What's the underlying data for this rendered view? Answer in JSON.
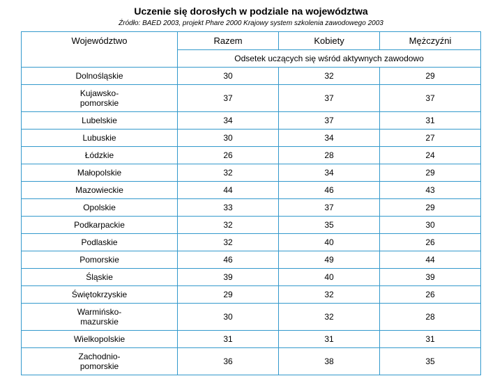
{
  "title": "Uczenie się dorosłych w podziale na województwa",
  "subtitle": "Źródło: BAED 2003, projekt Phare 2000 Krajowy system szkolenia zawodowego 2003",
  "table": {
    "columns": [
      "Województwo",
      "Razem",
      "Kobiety",
      "Mężczyźni"
    ],
    "spanning_header": "Odsetek uczących się wśród aktywnych zawodowo",
    "rows": [
      [
        "Dolnośląskie",
        "30",
        "32",
        "29"
      ],
      [
        "Kujawsko-pomorskie",
        "37",
        "37",
        "37"
      ],
      [
        "Lubelskie",
        "34",
        "37",
        "31"
      ],
      [
        "Lubuskie",
        "30",
        "34",
        "27"
      ],
      [
        "Łódzkie",
        "26",
        "28",
        "24"
      ],
      [
        "Małopolskie",
        "32",
        "34",
        "29"
      ],
      [
        "Mazowieckie",
        "44",
        "46",
        "43"
      ],
      [
        "Opolskie",
        "33",
        "37",
        "29"
      ],
      [
        "Podkarpackie",
        "32",
        "35",
        "30"
      ],
      [
        "Podlaskie",
        "32",
        "40",
        "26"
      ],
      [
        "Pomorskie",
        "46",
        "49",
        "44"
      ],
      [
        "Śląskie",
        "39",
        "40",
        "39"
      ],
      [
        "Świętokrzyskie",
        "29",
        "32",
        "26"
      ],
      [
        "Warmińsko-mazurskie",
        "30",
        "32",
        "28"
      ],
      [
        "Wielkopolskie",
        "31",
        "31",
        "31"
      ],
      [
        "Zachodnio-pomorskie",
        "36",
        "38",
        "35"
      ]
    ],
    "border_color": "#3399cc",
    "background_color": "#ffffff",
    "font_size_title": 14,
    "font_size_subtitle": 10,
    "font_size_header": 13,
    "font_size_cell": 12
  }
}
